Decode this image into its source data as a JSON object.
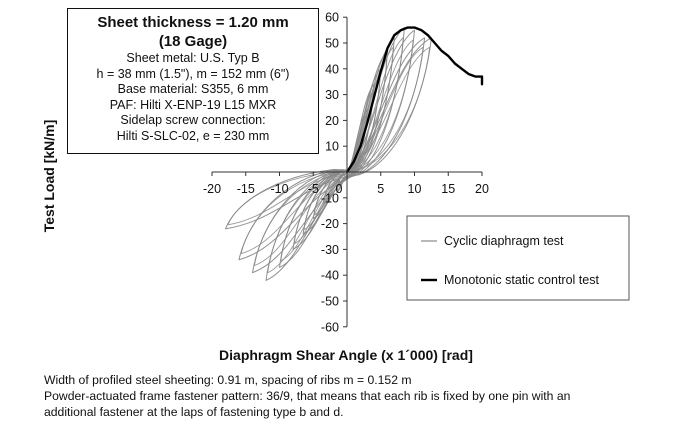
{
  "chart_data": {
    "type": "line",
    "xlabel": "Diaphragm Shear Angle (x 1´000) [rad]",
    "ylabel": "Test Load  [kN/m]",
    "xlim": [
      -20,
      20
    ],
    "ylim": [
      -60,
      60
    ],
    "x_ticks": [
      "-20",
      "-15",
      "-10",
      "-5",
      "0",
      "5",
      "10",
      "15",
      "20"
    ],
    "y_ticks": [
      "60",
      "50",
      "40",
      "30",
      "20",
      "10",
      "0",
      "-10",
      "-20",
      "-30",
      "-40",
      "-50",
      "-60"
    ],
    "grid": false,
    "legend_position": "lower-right",
    "series": [
      {
        "name": "Cyclic diaphragm test",
        "style": "thin-gray",
        "color": "#8a8a8a",
        "loops": [
          {
            "peak": [
              1.5,
              8
            ],
            "trough": [
              -1.5,
              -8
            ]
          },
          {
            "peak": [
              3,
              24
            ],
            "trough": [
              -3.5,
              -12
            ]
          },
          {
            "peak": [
              4,
              34
            ],
            "trough": [
              -5,
              -18
            ]
          },
          {
            "peak": [
              5,
              40
            ],
            "trough": [
              -6.5,
              -24
            ]
          },
          {
            "peak": [
              6,
              47
            ],
            "trough": [
              -8,
              -30
            ]
          },
          {
            "peak": [
              7,
              52
            ],
            "trough": [
              -10,
              -37
            ]
          },
          {
            "peak": [
              8.5,
              56
            ],
            "trough": [
              -12,
              -42
            ]
          },
          {
            "peak": [
              10,
              55
            ],
            "trough": [
              -14,
              -39
            ]
          },
          {
            "peak": [
              11.5,
              52
            ],
            "trough": [
              -16,
              -34
            ]
          },
          {
            "peak": [
              12.5,
              52
            ],
            "trough": [
              -18,
              -22
            ]
          }
        ]
      },
      {
        "name": "Monotonic static control test",
        "style": "thick-black",
        "color": "#000000",
        "x": [
          0,
          1,
          2,
          3,
          4,
          5,
          6,
          7,
          8,
          9,
          10,
          11,
          12,
          13,
          14,
          15,
          16,
          17,
          18,
          19,
          20,
          20
        ],
        "y": [
          0,
          4,
          10,
          19,
          29,
          39,
          48,
          53,
          55,
          56,
          56,
          55,
          53,
          50,
          47,
          45,
          42,
          40,
          38,
          37,
          37,
          34
        ]
      }
    ]
  },
  "infobox": {
    "title_1": "Sheet thickness = 1.20 mm",
    "title_2": "(18 Gage)",
    "line_1": "Sheet metal: U.S. Typ B",
    "line_2": "h = 38 mm (1.5\"), m = 152 mm (6\")",
    "line_3": "Base material: S355, 6 mm",
    "line_4": "PAF: Hilti X-ENP-19 L15 MXR",
    "line_5": "Sidelap screw connection:",
    "line_6": "Hilti S-SLC-02, e = 230 mm"
  },
  "caption": {
    "line_1": "Width of profiled steel sheeting: 0.91 m, spacing of ribs m = 0.152 m",
    "line_2": "Powder-actuated frame fastener pattern: 36/9, that means that each rib is fixed by one pin with an",
    "line_3": "additional fastener at the laps of fastening type b and d."
  }
}
